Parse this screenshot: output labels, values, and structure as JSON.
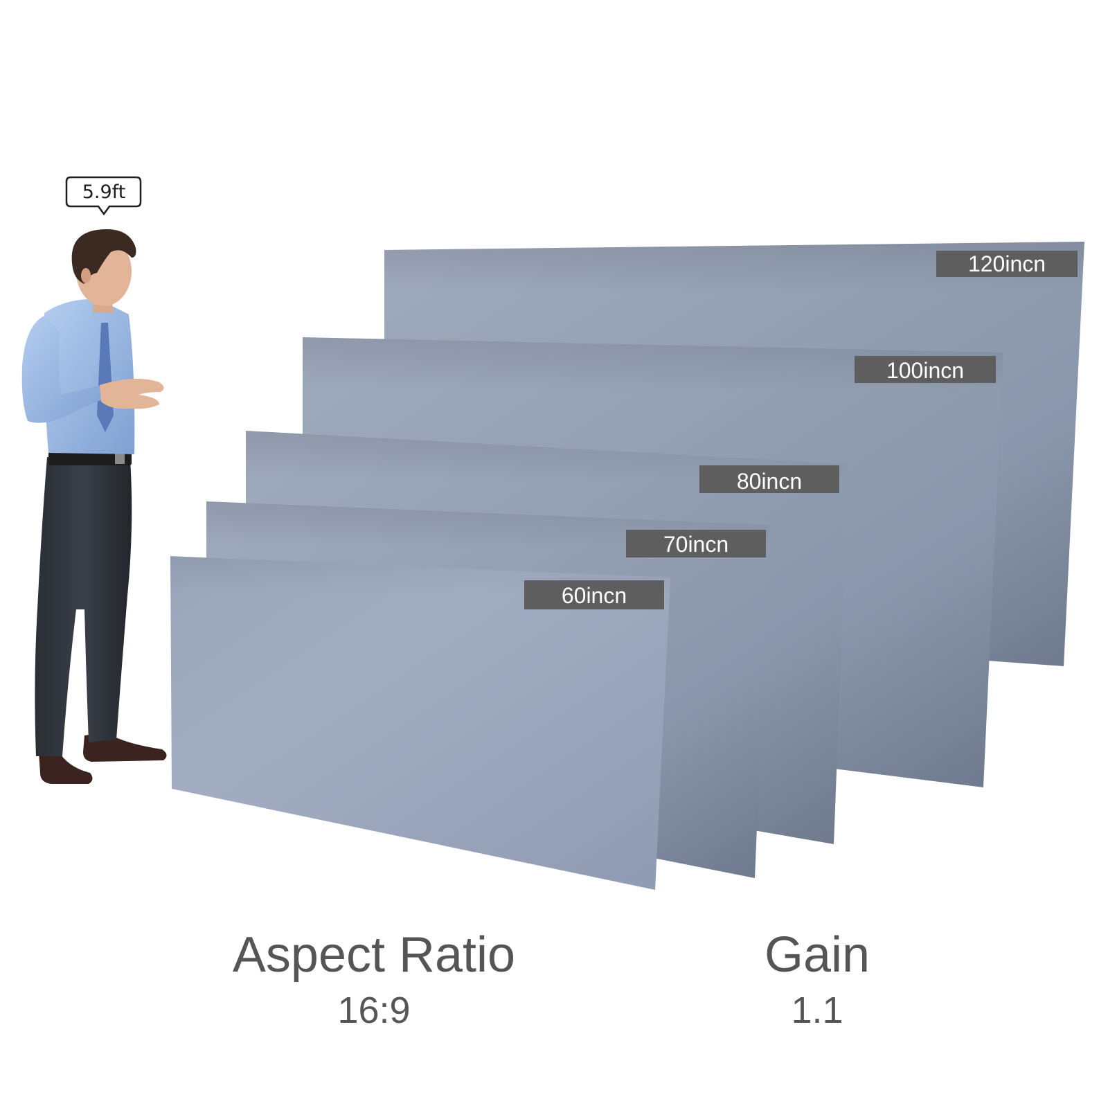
{
  "person": {
    "height_label": "5.9ft"
  },
  "screens": [
    {
      "size_label": "120incn"
    },
    {
      "size_label": "100incn"
    },
    {
      "size_label": "80incn"
    },
    {
      "size_label": "70incn"
    },
    {
      "size_label": "60incn"
    }
  ],
  "specs": {
    "aspect_ratio": {
      "title": "Aspect Ratio",
      "value": "16:9"
    },
    "gain": {
      "title": "Gain",
      "value": "1.1"
    }
  },
  "colors": {
    "screen_light": "#a1abc0",
    "screen_mid": "#939fb6",
    "screen_dark": "#6c778b",
    "label_bg": "#5e5e5e",
    "spec_text": "#555555"
  }
}
